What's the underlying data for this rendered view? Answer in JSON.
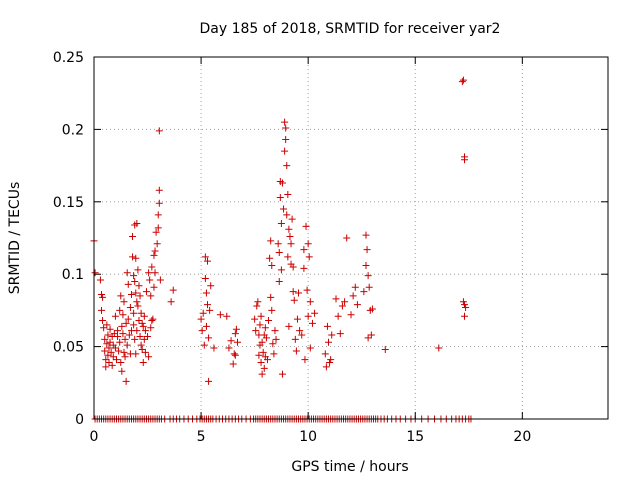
{
  "chart_data": {
    "type": "scatter",
    "title": "Day 185 of 2018, SRMTID for receiver yar2",
    "xlabel": "GPS time / hours",
    "ylabel": "SRMTID / TECUs",
    "xlim": [
      0,
      24
    ],
    "ylim": [
      0,
      0.25
    ],
    "xticks": [
      0,
      5,
      10,
      15,
      20
    ],
    "xtick_labels": [
      "0",
      "5",
      "10",
      "15",
      "20"
    ],
    "yticks": [
      0,
      0.05,
      0.1,
      0.15,
      0.2,
      0.25
    ],
    "ytick_labels": [
      "0",
      "0.05",
      "0.1",
      "0.15",
      "0.2",
      "0.25"
    ],
    "grid": true,
    "marker": "+",
    "color": "#cc0000",
    "series": [
      {
        "name": "SRMTID",
        "points": [
          [
            0.0,
            0.123
          ],
          [
            0.05,
            0.101
          ],
          [
            0.3,
            0.096
          ],
          [
            0.35,
            0.086
          ],
          [
            0.35,
            0.075
          ],
          [
            0.4,
            0.068
          ],
          [
            0.4,
            0.084
          ],
          [
            0.45,
            0.063
          ],
          [
            0.5,
            0.055
          ],
          [
            0.5,
            0.047
          ],
          [
            0.55,
            0.041
          ],
          [
            0.55,
            0.036
          ],
          [
            0.6,
            0.065
          ],
          [
            0.6,
            0.052
          ],
          [
            0.65,
            0.058
          ],
          [
            0.65,
            0.044
          ],
          [
            0.7,
            0.049
          ],
          [
            0.7,
            0.039
          ],
          [
            0.75,
            0.062
          ],
          [
            0.75,
            0.053
          ],
          [
            0.8,
            0.046
          ],
          [
            0.85,
            0.057
          ],
          [
            0.85,
            0.037
          ],
          [
            0.9,
            0.051
          ],
          [
            0.9,
            0.043
          ],
          [
            0.95,
            0.059
          ],
          [
            1.0,
            0.071
          ],
          [
            1.0,
            0.049
          ],
          [
            1.05,
            0.041
          ],
          [
            1.1,
            0.057
          ],
          [
            1.1,
            0.061
          ],
          [
            1.15,
            0.047
          ],
          [
            1.2,
            0.053
          ],
          [
            1.2,
            0.075
          ],
          [
            1.25,
            0.085
          ],
          [
            1.25,
            0.039
          ],
          [
            1.3,
            0.064
          ],
          [
            1.3,
            0.033
          ],
          [
            1.35,
            0.059
          ],
          [
            1.35,
            0.072
          ],
          [
            1.4,
            0.046
          ],
          [
            1.4,
            0.081
          ],
          [
            1.45,
            0.055
          ],
          [
            1.45,
            0.043
          ],
          [
            1.5,
            0.066
          ],
          [
            1.5,
            0.026
          ],
          [
            1.55,
            0.101
          ],
          [
            1.55,
            0.051
          ],
          [
            1.6,
            0.093
          ],
          [
            1.6,
            0.069
          ],
          [
            1.65,
            0.058
          ],
          [
            1.7,
            0.045
          ],
          [
            1.7,
            0.077
          ],
          [
            1.75,
            0.061
          ],
          [
            1.75,
            0.086
          ],
          [
            1.8,
            0.126
          ],
          [
            1.8,
            0.112
          ],
          [
            1.85,
            0.099
          ],
          [
            1.85,
            0.073
          ],
          [
            1.85,
            0.065
          ],
          [
            1.9,
            0.134
          ],
          [
            1.9,
            0.095
          ],
          [
            1.9,
            0.055
          ],
          [
            1.95,
            0.111
          ],
          [
            1.95,
            0.087
          ],
          [
            1.95,
            0.045
          ],
          [
            2.0,
            0.081
          ],
          [
            2.0,
            0.061
          ],
          [
            2.0,
            0.135
          ],
          [
            2.05,
            0.078
          ],
          [
            2.05,
            0.103
          ],
          [
            2.1,
            0.092
          ],
          [
            2.1,
            0.068
          ],
          [
            2.15,
            0.085
          ],
          [
            2.15,
            0.057
          ],
          [
            2.2,
            0.073
          ],
          [
            2.2,
            0.051
          ],
          [
            2.25,
            0.066
          ],
          [
            2.25,
            0.048
          ],
          [
            2.3,
            0.064
          ],
          [
            2.3,
            0.039
          ],
          [
            2.35,
            0.071
          ],
          [
            2.35,
            0.055
          ],
          [
            2.4,
            0.061
          ],
          [
            2.4,
            0.046
          ],
          [
            2.45,
            0.088
          ],
          [
            2.5,
            0.057
          ],
          [
            2.55,
            0.101
          ],
          [
            2.55,
            0.043
          ],
          [
            2.6,
            0.096
          ],
          [
            2.65,
            0.085
          ],
          [
            2.65,
            0.063
          ],
          [
            2.7,
            0.105
          ],
          [
            2.7,
            0.068
          ],
          [
            2.75,
            0.069
          ],
          [
            2.8,
            0.113
          ],
          [
            2.8,
            0.091
          ],
          [
            2.85,
            0.116
          ],
          [
            2.85,
            0.101
          ],
          [
            2.9,
            0.129
          ],
          [
            2.95,
            0.121
          ],
          [
            3.0,
            0.141
          ],
          [
            3.0,
            0.132
          ],
          [
            3.05,
            0.199
          ],
          [
            3.05,
            0.158
          ],
          [
            3.05,
            0.149
          ],
          [
            3.1,
            0.096
          ],
          [
            3.6,
            0.081
          ],
          [
            3.7,
            0.089
          ],
          [
            5.0,
            0.069
          ],
          [
            5.05,
            0.061
          ],
          [
            5.1,
            0.073
          ],
          [
            5.15,
            0.051
          ],
          [
            5.2,
            0.112
          ],
          [
            5.2,
            0.097
          ],
          [
            5.25,
            0.087
          ],
          [
            5.25,
            0.064
          ],
          [
            5.3,
            0.109
          ],
          [
            5.3,
            0.079
          ],
          [
            5.35,
            0.056
          ],
          [
            5.35,
            0.026
          ],
          [
            5.4,
            0.075
          ],
          [
            5.45,
            0.092
          ],
          [
            5.6,
            0.049
          ],
          [
            5.9,
            0.072
          ],
          [
            6.2,
            0.071
          ],
          [
            6.3,
            0.049
          ],
          [
            6.4,
            0.054
          ],
          [
            6.5,
            0.038
          ],
          [
            6.55,
            0.045
          ],
          [
            6.6,
            0.059
          ],
          [
            6.6,
            0.044
          ],
          [
            6.65,
            0.062
          ],
          [
            6.7,
            0.053
          ],
          [
            7.5,
            0.069
          ],
          [
            7.55,
            0.061
          ],
          [
            7.6,
            0.078
          ],
          [
            7.65,
            0.081
          ],
          [
            7.7,
            0.058
          ],
          [
            7.7,
            0.044
          ],
          [
            7.75,
            0.065
          ],
          [
            7.75,
            0.051
          ],
          [
            7.8,
            0.071
          ],
          [
            7.8,
            0.039
          ],
          [
            7.85,
            0.053
          ],
          [
            7.85,
            0.031
          ],
          [
            7.9,
            0.046
          ],
          [
            7.95,
            0.058
          ],
          [
            7.95,
            0.035
          ],
          [
            8.0,
            0.063
          ],
          [
            8.0,
            0.043
          ],
          [
            8.05,
            0.056
          ],
          [
            8.1,
            0.041
          ],
          [
            8.15,
            0.068
          ],
          [
            8.2,
            0.111
          ],
          [
            8.25,
            0.123
          ],
          [
            8.25,
            0.084
          ],
          [
            8.3,
            0.106
          ],
          [
            8.3,
            0.075
          ],
          [
            8.35,
            0.052
          ],
          [
            8.4,
            0.045
          ],
          [
            8.45,
            0.061
          ],
          [
            8.5,
            0.055
          ],
          [
            8.6,
            0.121
          ],
          [
            8.65,
            0.115
          ],
          [
            8.65,
            0.095
          ],
          [
            8.7,
            0.164
          ],
          [
            8.7,
            0.153
          ],
          [
            8.75,
            0.135
          ],
          [
            8.75,
            0.103
          ],
          [
            8.8,
            0.031
          ],
          [
            8.8,
            0.163
          ],
          [
            8.85,
            0.145
          ],
          [
            8.9,
            0.205
          ],
          [
            8.9,
            0.185
          ],
          [
            8.95,
            0.201
          ],
          [
            8.95,
            0.193
          ],
          [
            9.0,
            0.175
          ],
          [
            9.0,
            0.141
          ],
          [
            9.05,
            0.155
          ],
          [
            9.05,
            0.112
          ],
          [
            9.1,
            0.131
          ],
          [
            9.1,
            0.064
          ],
          [
            9.15,
            0.126
          ],
          [
            9.2,
            0.121
          ],
          [
            9.2,
            0.107
          ],
          [
            9.25,
            0.138
          ],
          [
            9.3,
            0.105
          ],
          [
            9.3,
            0.088
          ],
          [
            9.35,
            0.082
          ],
          [
            9.4,
            0.055
          ],
          [
            9.45,
            0.047
          ],
          [
            9.5,
            0.069
          ],
          [
            9.55,
            0.087
          ],
          [
            9.6,
            0.061
          ],
          [
            9.7,
            0.058
          ],
          [
            9.8,
            0.117
          ],
          [
            9.8,
            0.104
          ],
          [
            9.85,
            0.041
          ],
          [
            9.9,
            0.133
          ],
          [
            9.95,
            0.089
          ],
          [
            10.0,
            0.071
          ],
          [
            10.0,
            0.121
          ],
          [
            10.05,
            0.112
          ],
          [
            10.1,
            0.081
          ],
          [
            10.1,
            0.049
          ],
          [
            10.2,
            0.066
          ],
          [
            10.3,
            0.073
          ],
          [
            10.8,
            0.045
          ],
          [
            10.85,
            0.036
          ],
          [
            10.9,
            0.064
          ],
          [
            10.95,
            0.053
          ],
          [
            11.0,
            0.039
          ],
          [
            11.05,
            0.041
          ],
          [
            11.1,
            0.058
          ],
          [
            11.3,
            0.083
          ],
          [
            11.4,
            0.071
          ],
          [
            11.5,
            0.059
          ],
          [
            11.6,
            0.078
          ],
          [
            11.7,
            0.081
          ],
          [
            11.8,
            0.125
          ],
          [
            12.0,
            0.072
          ],
          [
            12.1,
            0.085
          ],
          [
            12.2,
            0.091
          ],
          [
            12.3,
            0.079
          ],
          [
            12.6,
            0.088
          ],
          [
            12.7,
            0.127
          ],
          [
            12.7,
            0.106
          ],
          [
            12.75,
            0.117
          ],
          [
            12.8,
            0.099
          ],
          [
            12.8,
            0.056
          ],
          [
            12.85,
            0.091
          ],
          [
            12.9,
            0.075
          ],
          [
            12.95,
            0.058
          ],
          [
            13.0,
            0.076
          ],
          [
            13.6,
            0.048
          ],
          [
            16.1,
            0.049
          ],
          [
            17.2,
            0.233
          ],
          [
            17.25,
            0.234
          ],
          [
            17.3,
            0.179
          ],
          [
            17.3,
            0.181
          ],
          [
            17.25,
            0.081
          ],
          [
            17.3,
            0.079
          ],
          [
            17.35,
            0.077
          ],
          [
            17.3,
            0.071
          ]
        ],
        "zero_points": [
          0.05,
          0.15,
          0.25,
          0.35,
          0.45,
          0.55,
          0.65,
          0.75,
          0.85,
          0.95,
          1.05,
          1.15,
          1.25,
          1.35,
          1.45,
          1.55,
          1.65,
          1.75,
          1.85,
          1.95,
          2.05,
          2.15,
          2.25,
          2.35,
          2.45,
          2.55,
          2.65,
          2.75,
          2.85,
          2.95,
          3.05,
          3.15,
          3.3,
          3.55,
          3.7,
          3.85,
          4.0,
          4.2,
          4.4,
          4.6,
          4.8,
          4.95,
          5.05,
          5.15,
          5.25,
          5.35,
          5.45,
          5.55,
          5.7,
          5.85,
          6.0,
          6.15,
          6.3,
          6.45,
          6.6,
          6.75,
          6.9,
          7.1,
          7.3,
          7.45,
          7.55,
          7.65,
          7.75,
          7.85,
          7.95,
          8.05,
          8.15,
          8.25,
          8.35,
          8.45,
          8.55,
          8.65,
          8.75,
          8.85,
          8.95,
          9.05,
          9.15,
          9.25,
          9.35,
          9.45,
          9.55,
          9.65,
          9.75,
          9.85,
          9.95,
          10.05,
          10.15,
          10.25,
          10.35,
          10.45,
          10.55,
          10.65,
          10.75,
          10.85,
          10.95,
          11.05,
          11.15,
          11.25,
          11.35,
          11.45,
          11.55,
          11.65,
          11.75,
          11.85,
          11.95,
          12.05,
          12.15,
          12.25,
          12.35,
          12.45,
          12.55,
          12.65,
          12.75,
          12.85,
          12.95,
          13.05,
          13.15,
          13.25,
          13.4,
          13.55,
          13.7,
          13.9,
          14.1,
          14.3,
          14.55,
          14.8,
          15.0,
          15.3,
          15.6,
          15.9,
          16.2,
          16.45,
          16.7,
          16.9,
          17.05,
          17.2,
          17.35,
          17.5,
          17.6
        ]
      }
    ]
  }
}
